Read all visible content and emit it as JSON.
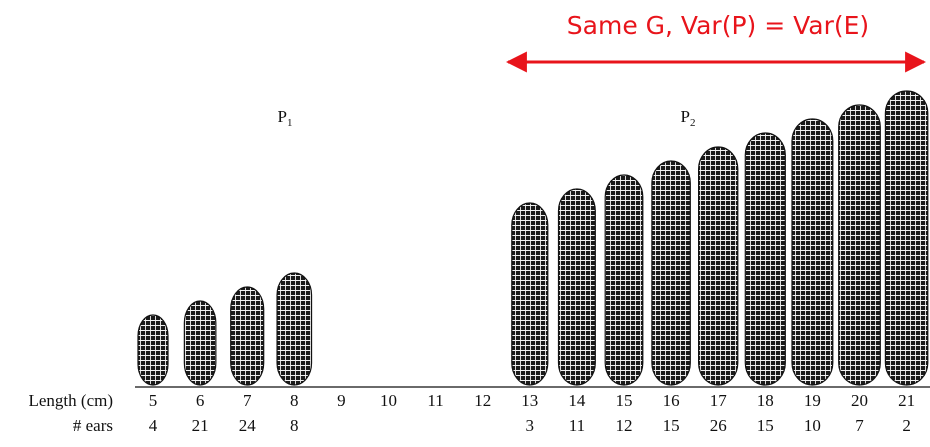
{
  "annotation": "Same G, Var(P) = Var(E)",
  "groups": [
    {
      "label": "P",
      "subscript": "1"
    },
    {
      "label": "P",
      "subscript": "2"
    }
  ],
  "table": {
    "row_labels": [
      "Length (cm)",
      "# ears"
    ],
    "lengths": [
      5,
      6,
      7,
      8,
      9,
      10,
      11,
      12,
      13,
      14,
      15,
      16,
      17,
      18,
      19,
      20,
      21
    ],
    "ears": [
      4,
      21,
      24,
      8,
      null,
      null,
      null,
      null,
      3,
      11,
      12,
      15,
      26,
      15,
      10,
      7,
      2
    ]
  }
}
